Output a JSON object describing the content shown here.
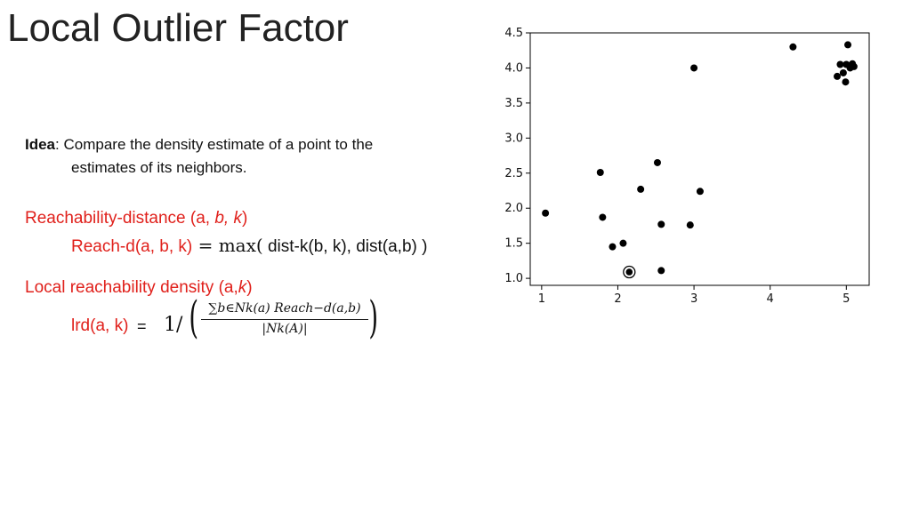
{
  "slide": {
    "title": "Local Outlier Factor",
    "idea_label": "Idea",
    "idea_line1": ":  Compare the density estimate of a point to the",
    "idea_line2": "estimates of its neighbors.",
    "reach_heading_prefix": "Reachability-distance (a, ",
    "reach_heading_b": "b, k",
    "reach_heading_suffix": ")",
    "reach_label": "Reach-d(a, b, k)",
    "reach_eq": " = ",
    "reach_max": "max(",
    "reach_args": " dist-k(b, k), dist(a,b) )",
    "lrd_heading_prefix": "Local reachability density (a,",
    "lrd_heading_k": "k",
    "lrd_heading_suffix": ")",
    "lrd_label": "lrd(a, k)",
    "lrd_eq": "= ",
    "lrd_one": "1/",
    "lrd_numerator": "∑b∈Nk(a) Reach−d(a,b)",
    "lrd_denominator": "|Nk(A)|"
  },
  "chart_data": {
    "type": "scatter",
    "title": "",
    "xlabel": "",
    "ylabel": "",
    "xlim": [
      0.85,
      5.3
    ],
    "ylim": [
      0.9,
      4.5
    ],
    "xticks": [
      1,
      2,
      3,
      4,
      5
    ],
    "yticks": [
      1.0,
      1.5,
      2.0,
      2.5,
      3.0,
      3.5,
      4.0,
      4.5
    ],
    "xtick_labels": [
      "1",
      "2",
      "3",
      "4",
      "5"
    ],
    "ytick_labels": [
      "1.0",
      "1.5",
      "2.0",
      "2.5",
      "3.0",
      "3.5",
      "4.0",
      "4.5"
    ],
    "grid": false,
    "point_color": "#000000",
    "points": [
      {
        "x": 1.05,
        "y": 1.93
      },
      {
        "x": 1.77,
        "y": 2.51
      },
      {
        "x": 1.8,
        "y": 1.87
      },
      {
        "x": 1.93,
        "y": 1.45
      },
      {
        "x": 2.07,
        "y": 1.5
      },
      {
        "x": 2.3,
        "y": 2.27
      },
      {
        "x": 2.52,
        "y": 2.65
      },
      {
        "x": 2.57,
        "y": 1.77
      },
      {
        "x": 2.57,
        "y": 1.11
      },
      {
        "x": 2.95,
        "y": 1.76
      },
      {
        "x": 3.0,
        "y": 4.0
      },
      {
        "x": 3.08,
        "y": 2.24
      },
      {
        "x": 4.3,
        "y": 4.3
      },
      {
        "x": 4.88,
        "y": 3.88
      },
      {
        "x": 4.92,
        "y": 4.05
      },
      {
        "x": 4.96,
        "y": 3.93
      },
      {
        "x": 4.99,
        "y": 3.8
      },
      {
        "x": 5.0,
        "y": 4.05
      },
      {
        "x": 5.02,
        "y": 4.33
      },
      {
        "x": 5.05,
        "y": 4.0
      },
      {
        "x": 5.08,
        "y": 4.06
      },
      {
        "x": 5.1,
        "y": 4.02
      }
    ],
    "highlighted": {
      "x": 2.15,
      "y": 1.09
    }
  }
}
